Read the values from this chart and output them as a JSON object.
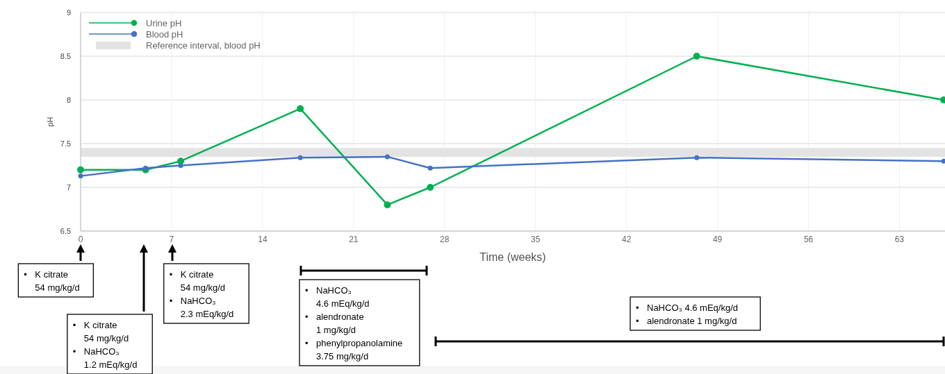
{
  "chart_data": {
    "type": "line",
    "xlabel": "Time (weeks)",
    "ylabel": "pH",
    "xlim": [
      0,
      66.5
    ],
    "xticks": [
      0,
      7,
      14,
      21,
      28,
      35,
      42,
      49,
      56,
      63
    ],
    "ylim": [
      6.5,
      9
    ],
    "yticks": [
      6.5,
      7,
      7.5,
      8,
      8.5,
      9
    ],
    "grid": true,
    "legend": "top left",
    "marker": "circle",
    "line_style": "solid",
    "series": [
      {
        "name": "Urine pH",
        "color": "#00b050",
        "x": [
          0,
          5,
          7.7,
          16.9,
          23.6,
          26.9,
          47.4,
          66.4
        ],
        "values": [
          7.2,
          7.2,
          7.3,
          7.9,
          6.8,
          7.0,
          8.5,
          8.0
        ]
      },
      {
        "name": "Blood pH",
        "color": "#4472c4",
        "x": [
          0,
          5,
          7.7,
          16.9,
          23.6,
          26.9,
          47.4,
          66.4
        ],
        "values": [
          7.13,
          7.22,
          7.25,
          7.34,
          7.35,
          7.22,
          7.34,
          7.3
        ]
      }
    ],
    "bands": [
      {
        "axis": "y",
        "from": 7.35,
        "to": 7.45,
        "label": "Reference interval, blood pH",
        "color": "#e3e3e3"
      }
    ],
    "annotations": [
      "• K citrate\n54 mg/kg/d",
      "• K citrate\n54 mg/kg/d\n• NaHCO₃\n1.2 mEq/kg/d",
      "• K citrate\n54 mg/kg/d\n• NaHCO₃\n2.3 mEq/kg/d",
      "• NaHCO₃\n4.6 mEq/kg/d\n• alendronate\n1 mg/kg/d\n• phenylpropanolamine\n3.75 mg/kg/d",
      "• NaHCO₃ 4.6 mEq/kg/d\n• alendronate 1 mg/kg/d"
    ]
  }
}
